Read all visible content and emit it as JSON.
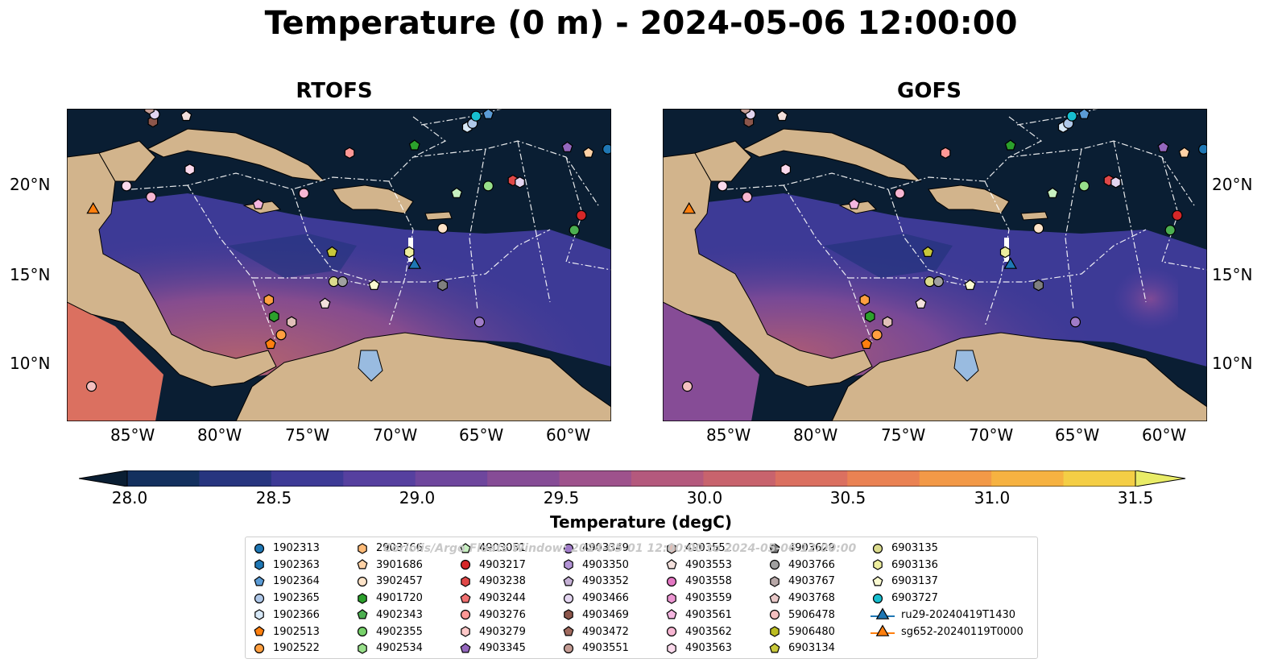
{
  "title": "Temperature (0 m) - 2024-05-06 12:00:00",
  "panels": [
    {
      "name": "RTOFS"
    },
    {
      "name": "GOFS"
    }
  ],
  "axes": {
    "lon_ticks": [
      "85°W",
      "80°W",
      "75°W",
      "70°W",
      "65°W",
      "60°W"
    ],
    "lat_ticks": [
      "20°N",
      "15°N",
      "10°N"
    ],
    "lon_range": [
      -89,
      -58
    ],
    "lat_range": [
      7,
      24
    ]
  },
  "colorbar": {
    "label": "Temperature (degC)",
    "ticks": [
      "28.0",
      "28.5",
      "29.0",
      "29.5",
      "30.0",
      "30.5",
      "31.0",
      "31.5"
    ],
    "range": [
      28.0,
      31.5
    ],
    "colors": [
      "#0a1e33",
      "#13305e",
      "#27357f",
      "#3d3a96",
      "#56409f",
      "#6e469d",
      "#864c96",
      "#9e528c",
      "#b4597d",
      "#c8636d",
      "#db7060",
      "#ea8253",
      "#f29947",
      "#f6b241",
      "#f4ce45",
      "#e9ec67"
    ]
  },
  "watermark": "Coriolis/Argo Floats Window: 2024-05-01 12:00:00 to 2024-05-06 12:00:00",
  "legend": [
    {
      "label": "1902313",
      "marker": "circle",
      "color": "#1f77b4"
    },
    {
      "label": "1902363",
      "marker": "hexagon",
      "color": "#1f77b4"
    },
    {
      "label": "1902364",
      "marker": "pentagon",
      "color": "#5b9bd5"
    },
    {
      "label": "1902365",
      "marker": "circle",
      "color": "#aec7e8"
    },
    {
      "label": "1902366",
      "marker": "hexagon",
      "color": "#d7e8f7"
    },
    {
      "label": "1902513",
      "marker": "pentagon",
      "color": "#ff7f0e"
    },
    {
      "label": "1902522",
      "marker": "circle",
      "color": "#ff9f40"
    },
    {
      "label": "2903766",
      "marker": "hexagon",
      "color": "#ffbb78"
    },
    {
      "label": "3901686",
      "marker": "pentagon",
      "color": "#ffd2a6"
    },
    {
      "label": "3902457",
      "marker": "circle",
      "color": "#fde3c8"
    },
    {
      "label": "4901720",
      "marker": "hexagon",
      "color": "#2ca02c"
    },
    {
      "label": "4902343",
      "marker": "pentagon",
      "color": "#4caf50"
    },
    {
      "label": "4902355",
      "marker": "circle",
      "color": "#77d16a"
    },
    {
      "label": "4902534",
      "marker": "hexagon",
      "color": "#98df8a"
    },
    {
      "label": "4903051",
      "marker": "pentagon",
      "color": "#c7f0c0"
    },
    {
      "label": "4903217",
      "marker": "circle",
      "color": "#d62728"
    },
    {
      "label": "4903238",
      "marker": "hexagon",
      "color": "#e04848"
    },
    {
      "label": "4903244",
      "marker": "pentagon",
      "color": "#f07070"
    },
    {
      "label": "4903276",
      "marker": "circle",
      "color": "#ff9896"
    },
    {
      "label": "4903279",
      "marker": "hexagon",
      "color": "#ffc8c8"
    },
    {
      "label": "4903345",
      "marker": "pentagon",
      "color": "#9467bd"
    },
    {
      "label": "4903349",
      "marker": "circle",
      "color": "#a07cc8"
    },
    {
      "label": "4903350",
      "marker": "hexagon",
      "color": "#b394d6"
    },
    {
      "label": "4903352",
      "marker": "pentagon",
      "color": "#c5b0d5"
    },
    {
      "label": "4903466",
      "marker": "circle",
      "color": "#e3d5f0"
    },
    {
      "label": "4903469",
      "marker": "hexagon",
      "color": "#8c564b"
    },
    {
      "label": "4903472",
      "marker": "pentagon",
      "color": "#a06a5e"
    },
    {
      "label": "4903551",
      "marker": "circle",
      "color": "#c49c94"
    },
    {
      "label": "4903552",
      "marker": "hexagon",
      "color": "#e0bfb8"
    },
    {
      "label": "4903553",
      "marker": "pentagon",
      "color": "#f3e0dc"
    },
    {
      "label": "4903558",
      "marker": "circle",
      "color": "#e377c2"
    },
    {
      "label": "4903559",
      "marker": "hexagon",
      "color": "#ec96d2"
    },
    {
      "label": "4903561",
      "marker": "pentagon",
      "color": "#f4b6e0"
    },
    {
      "label": "4903562",
      "marker": "circle",
      "color": "#f7b6d2"
    },
    {
      "label": "4903563",
      "marker": "hexagon",
      "color": "#fbd9ec"
    },
    {
      "label": "4903629",
      "marker": "pentagon",
      "color": "#7f7f7f"
    },
    {
      "label": "4903766",
      "marker": "circle",
      "color": "#a0a0a0"
    },
    {
      "label": "4903767",
      "marker": "hexagon",
      "color": "#b8a8a8"
    },
    {
      "label": "4903768",
      "marker": "pentagon",
      "color": "#e8c8c8"
    },
    {
      "label": "5906478",
      "marker": "circle",
      "color": "#f4c0c0"
    },
    {
      "label": "5906480",
      "marker": "hexagon",
      "color": "#bcbd22"
    },
    {
      "label": "6903134",
      "marker": "pentagon",
      "color": "#c8c83a"
    },
    {
      "label": "6903135",
      "marker": "circle",
      "color": "#dbdb8d"
    },
    {
      "label": "6903136",
      "marker": "hexagon",
      "color": "#eeee9e"
    },
    {
      "label": "6903137",
      "marker": "pentagon",
      "color": "#fafad0"
    },
    {
      "label": "6903727",
      "marker": "circle",
      "color": "#17becf"
    },
    {
      "label": "ru29-20240419T1430",
      "marker": "triangle-line",
      "color": "#1f77b4"
    },
    {
      "label": "sg652-20240119T0000",
      "marker": "triangle-line",
      "color": "#ff7f0e"
    }
  ],
  "stations": [
    {
      "lon": -87.5,
      "lat": 18.5,
      "marker": "triangle",
      "color": "#ff7f0e"
    },
    {
      "lon": -69.2,
      "lat": 15.5,
      "marker": "triangle",
      "color": "#1f77b4"
    },
    {
      "lon": -87.6,
      "lat": 8.9,
      "marker": "circle",
      "color": "#f4c0c0"
    },
    {
      "lon": -85.6,
      "lat": 19.8,
      "marker": "circle",
      "color": "#fbd9ec"
    },
    {
      "lon": -84.2,
      "lat": 19.2,
      "marker": "circle",
      "color": "#f7b6d2"
    },
    {
      "lon": -82.0,
      "lat": 20.7,
      "marker": "hexagon",
      "color": "#fbd9ec"
    },
    {
      "lon": -78.1,
      "lat": 18.8,
      "marker": "pentagon",
      "color": "#f4b6e0"
    },
    {
      "lon": -75.5,
      "lat": 19.4,
      "marker": "circle",
      "color": "#f7b6d2"
    },
    {
      "lon": -72.9,
      "lat": 21.6,
      "marker": "hexagon",
      "color": "#ff9896"
    },
    {
      "lon": -77.5,
      "lat": 13.6,
      "marker": "hexagon",
      "color": "#ff9f40"
    },
    {
      "lon": -77.2,
      "lat": 12.7,
      "marker": "hexagon",
      "color": "#2ca02c"
    },
    {
      "lon": -76.2,
      "lat": 12.4,
      "marker": "hexagon",
      "color": "#e0bfb8"
    },
    {
      "lon": -76.8,
      "lat": 11.7,
      "marker": "circle",
      "color": "#ff9f40"
    },
    {
      "lon": -77.4,
      "lat": 11.2,
      "marker": "pentagon",
      "color": "#ff7f0e"
    },
    {
      "lon": -74.3,
      "lat": 13.4,
      "marker": "pentagon",
      "color": "#f3e0dc"
    },
    {
      "lon": -73.9,
      "lat": 16.2,
      "marker": "pentagon",
      "color": "#c8c83a"
    },
    {
      "lon": -73.8,
      "lat": 14.6,
      "marker": "circle",
      "color": "#dbdb8d"
    },
    {
      "lon": -73.3,
      "lat": 14.6,
      "marker": "circle",
      "color": "#a0a0a0"
    },
    {
      "lon": -71.5,
      "lat": 14.4,
      "marker": "pentagon",
      "color": "#fafad0"
    },
    {
      "lon": -69.5,
      "lat": 16.2,
      "marker": "hexagon",
      "color": "#eeee9e"
    },
    {
      "lon": -67.6,
      "lat": 17.5,
      "marker": "circle",
      "color": "#fde3c8"
    },
    {
      "lon": -67.6,
      "lat": 14.4,
      "marker": "hexagon",
      "color": "#7f7f7f"
    },
    {
      "lon": -65.5,
      "lat": 12.4,
      "marker": "circle",
      "color": "#a07cc8"
    },
    {
      "lon": -66.8,
      "lat": 19.4,
      "marker": "pentagon",
      "color": "#c7f0c0"
    },
    {
      "lon": -65.0,
      "lat": 19.8,
      "marker": "circle",
      "color": "#98df8a"
    },
    {
      "lon": -63.6,
      "lat": 20.1,
      "marker": "hexagon",
      "color": "#e04848"
    },
    {
      "lon": -63.2,
      "lat": 20.0,
      "marker": "hexagon",
      "color": "#e3d5f0"
    },
    {
      "lon": -69.2,
      "lat": 22.0,
      "marker": "pentagon",
      "color": "#2ca02c"
    },
    {
      "lon": -66.2,
      "lat": 23.0,
      "marker": "hexagon",
      "color": "#d7e8f7"
    },
    {
      "lon": -65.9,
      "lat": 23.2,
      "marker": "circle",
      "color": "#aec7e8"
    },
    {
      "lon": -65.7,
      "lat": 23.6,
      "marker": "circle",
      "color": "#17becf"
    },
    {
      "lon": -65.0,
      "lat": 23.7,
      "marker": "pentagon",
      "color": "#5b9bd5"
    },
    {
      "lon": -60.5,
      "lat": 21.9,
      "marker": "pentagon",
      "color": "#9467bd"
    },
    {
      "lon": -59.3,
      "lat": 21.6,
      "marker": "pentagon",
      "color": "#ffd2a6"
    },
    {
      "lon": -58.2,
      "lat": 21.8,
      "marker": "circle",
      "color": "#1f77b4"
    },
    {
      "lon": -59.7,
      "lat": 18.2,
      "marker": "circle",
      "color": "#d62728"
    },
    {
      "lon": -60.1,
      "lat": 17.4,
      "marker": "circle",
      "color": "#4caf50"
    },
    {
      "lon": -84.1,
      "lat": 23.3,
      "marker": "hexagon",
      "color": "#8c564b"
    },
    {
      "lon": -84.0,
      "lat": 23.7,
      "marker": "circle",
      "color": "#e3d5f0"
    },
    {
      "lon": -82.2,
      "lat": 23.6,
      "marker": "pentagon",
      "color": "#f3e0dc"
    },
    {
      "lon": -84.3,
      "lat": 24.0,
      "marker": "hexagon",
      "color": "#c49c94"
    }
  ]
}
